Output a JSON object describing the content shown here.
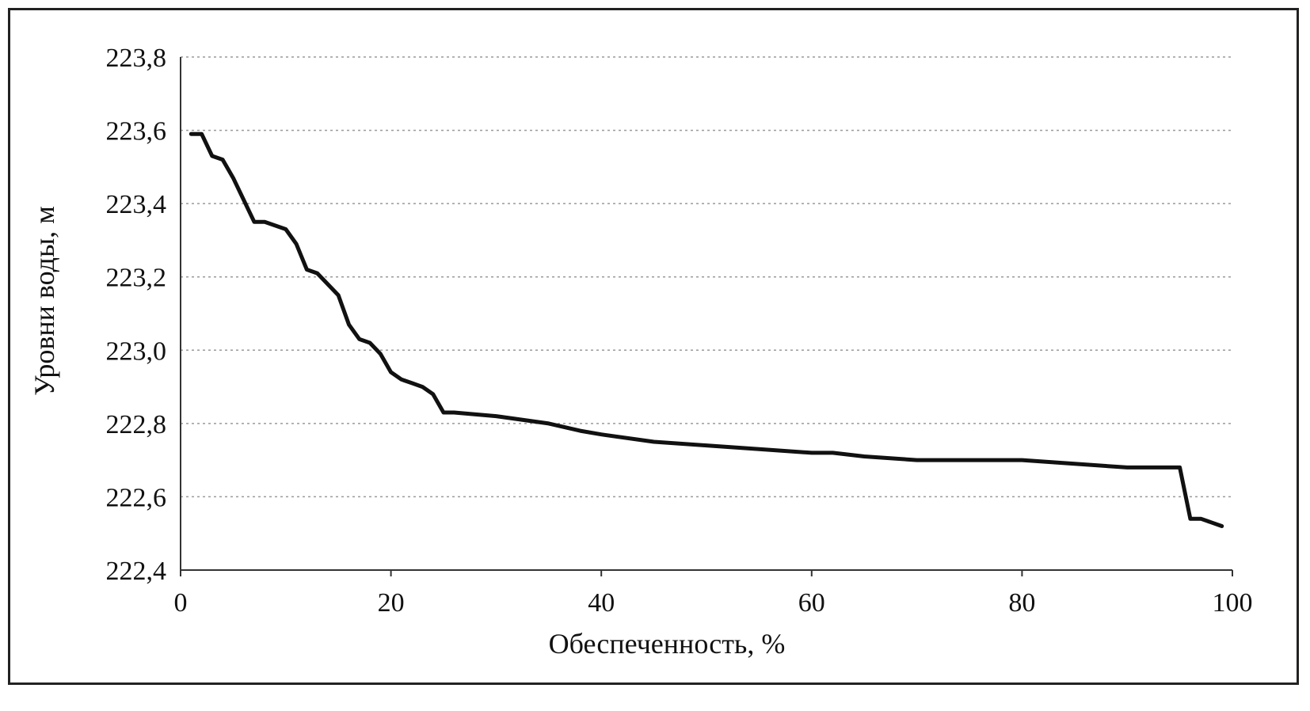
{
  "chart_data": {
    "type": "line",
    "xlabel": "Обеспеченность, %",
    "ylabel": "Уровни воды, м",
    "xlim": [
      0,
      100
    ],
    "ylim": [
      222.4,
      223.8
    ],
    "x_ticks": [
      "0",
      "20",
      "40",
      "60",
      "80",
      "100"
    ],
    "x_tick_values": [
      0,
      20,
      40,
      60,
      80,
      100
    ],
    "y_ticks": [
      "222,4",
      "222,6",
      "222,8",
      "223,0",
      "223,2",
      "223,4",
      "223,6",
      "223,8"
    ],
    "y_tick_values": [
      222.4,
      222.6,
      222.8,
      223.0,
      223.2,
      223.4,
      223.6,
      223.8
    ],
    "grid": true,
    "series": [
      {
        "name": "",
        "x": [
          1,
          2,
          3,
          4,
          5,
          6,
          7,
          8,
          9,
          10,
          11,
          12,
          13,
          14,
          15,
          16,
          17,
          18,
          19,
          20,
          21,
          22,
          23,
          24,
          25,
          26,
          30,
          35,
          38,
          40,
          45,
          50,
          55,
          60,
          62,
          65,
          70,
          75,
          80,
          85,
          90,
          94,
          95,
          96,
          97,
          98,
          99
        ],
        "y": [
          223.59,
          223.59,
          223.53,
          223.52,
          223.47,
          223.41,
          223.35,
          223.35,
          223.34,
          223.33,
          223.29,
          223.22,
          223.21,
          223.18,
          223.15,
          223.07,
          223.03,
          223.02,
          222.99,
          222.94,
          222.92,
          222.91,
          222.9,
          222.88,
          222.83,
          222.83,
          222.82,
          222.8,
          222.78,
          222.77,
          222.75,
          222.74,
          222.73,
          222.72,
          222.72,
          222.71,
          222.7,
          222.7,
          222.7,
          222.69,
          222.68,
          222.68,
          222.68,
          222.54,
          222.54,
          222.53,
          222.52
        ]
      }
    ]
  },
  "colors": {
    "line": "#111111",
    "grid": "#9a9a9a",
    "background": "#ffffff"
  }
}
